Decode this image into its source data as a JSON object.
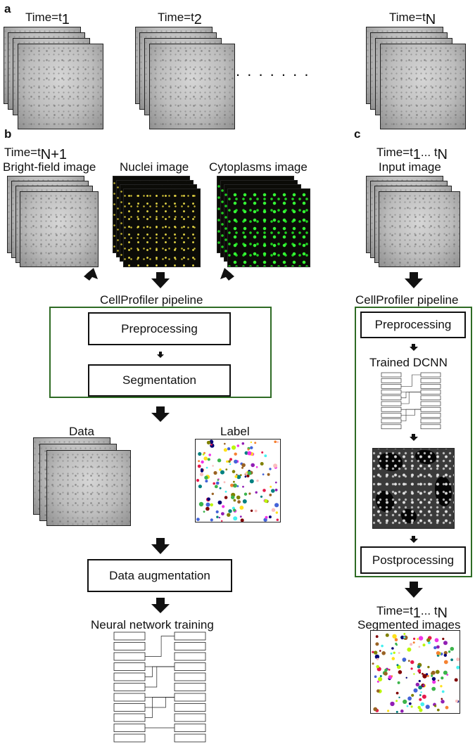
{
  "panel_a": {
    "letter": "a",
    "timepoints": [
      {
        "label_main": "Time=t",
        "label_sub": "1"
      },
      {
        "label_main": "Time=t",
        "label_sub": "2"
      },
      {
        "label_main": "Time=t",
        "label_sub": "N"
      }
    ],
    "ellipsis": ". . . . . . ."
  },
  "panel_b": {
    "letter": "b",
    "time_main": "Time=t",
    "time_sub": "N+1",
    "inputs": [
      "Bright-field image",
      "Nuclei image",
      "Cytoplasms image"
    ],
    "pipeline_title": "CellProfiler pipeline",
    "steps": [
      "Preprocessing",
      "Segmentation"
    ],
    "data_label": "Data",
    "label_label": "Label",
    "augmentation": "Data augmentation",
    "training": "Neural network training"
  },
  "panel_c": {
    "letter": "c",
    "time_main": "Time=t",
    "time_sub_1": "1",
    "time_mid": "... t",
    "time_sub_2": "N",
    "input_label": "Input image",
    "pipeline_title": "CellProfiler pipeline",
    "preprocessing": "Preprocessing",
    "trained": "Trained DCNN",
    "postprocessing": "Postprocessing",
    "output_time_main": "Time=t",
    "output_time_sub_1": "1",
    "output_time_mid": "... t",
    "output_time_sub_2": "N",
    "output_label": "Segmented images"
  },
  "colors": {
    "frame_green": "#2e6b24",
    "nuclei": "#f2e24a",
    "cytoplasm": "#35ff35"
  }
}
